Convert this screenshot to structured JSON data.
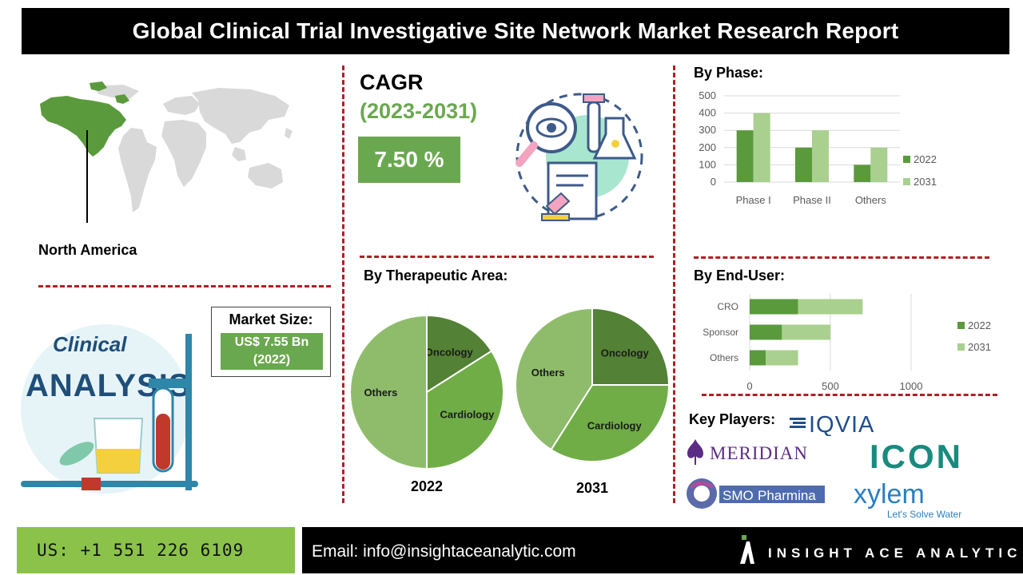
{
  "title": "Global Clinical Trial Investigative Site Network Market Research Report",
  "region": {
    "label": "North America"
  },
  "cagr": {
    "label": "CAGR",
    "years": "(2023-2031)",
    "value": "7.50 %"
  },
  "market_size": {
    "label": "Market Size:",
    "value_line1": "US$ 7.55 Bn",
    "value_line2": "(2022)"
  },
  "illustration": {
    "line1": "Clinical",
    "line2": "ANALYSIS"
  },
  "sections": {
    "phase": "By Phase:",
    "therapeutic": "By Therapeutic Area:",
    "end_user": "By End-User:",
    "key_players": "Key Players:"
  },
  "key_players": [
    "IQVIA",
    "MERIDIAN",
    "ICON",
    "SMO",
    "Pharmina",
    "xylem",
    "Let's Solve Water"
  ],
  "colors": {
    "dark_green": "#5a9a3c",
    "mid_green": "#6aa84f",
    "light_green": "#a9d08e",
    "pie_dark": "#538135",
    "pie_mid": "#70ad47",
    "pie_light": "#8fbc6b",
    "accent_red": "#b01f24"
  },
  "footer": {
    "phone": "US: +1 551 226 6109",
    "email": "Email: info@insightaceanalytic.com",
    "brand": "INSIGHT ACE ANALYTIC"
  },
  "chart_data": [
    {
      "type": "bar",
      "title": "By Phase:",
      "categories": [
        "Phase I",
        "Phase II",
        "Others"
      ],
      "series": [
        {
          "name": "2022",
          "values": [
            300,
            200,
            100
          ]
        },
        {
          "name": "2031",
          "values": [
            400,
            300,
            200
          ]
        }
      ],
      "ylim": [
        0,
        500
      ],
      "yticks": [
        0,
        100,
        200,
        300,
        400,
        500
      ],
      "legend": "right",
      "grid": true
    },
    {
      "type": "bar",
      "orientation": "horizontal-stacked",
      "title": "By End-User:",
      "categories": [
        "CRO",
        "Sponsor",
        "Others"
      ],
      "series": [
        {
          "name": "2022",
          "values": [
            300,
            200,
            100
          ]
        },
        {
          "name": "2031",
          "values": [
            400,
            300,
            200
          ]
        }
      ],
      "xlim": [
        0,
        1000
      ],
      "xticks": [
        0,
        500,
        1000
      ],
      "legend": "right",
      "grid": true
    },
    {
      "type": "pie",
      "title": "2022",
      "labels": [
        "Oncology",
        "Cardiology",
        "Others"
      ],
      "values": [
        16,
        34,
        50
      ]
    },
    {
      "type": "pie",
      "title": "2031",
      "labels": [
        "Oncology",
        "Cardiology",
        "Others"
      ],
      "values": [
        25,
        34,
        41
      ]
    }
  ]
}
